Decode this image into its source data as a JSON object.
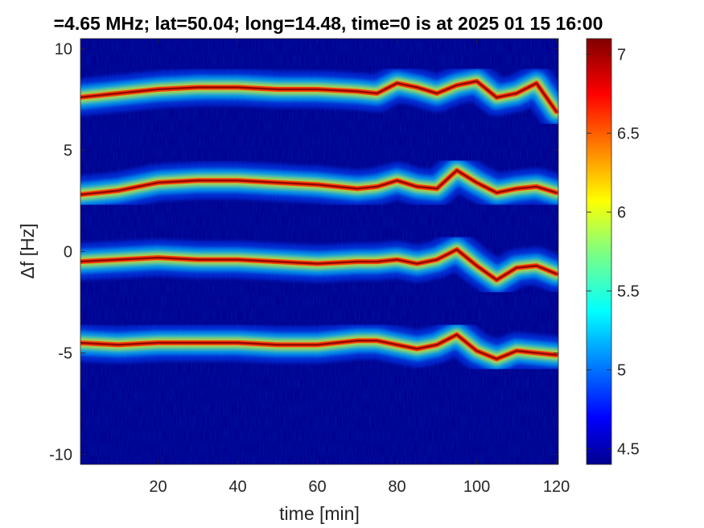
{
  "chart_data": {
    "type": "heatmap",
    "title": "=4.65 MHz;  lat=50.04; long=14.48, time=0 is at 2025 01 15 16:00",
    "xlabel": "time [min]",
    "ylabel": "Δf [Hz]",
    "xlim": [
      0.5,
      120.5
    ],
    "ylim": [
      -10.5,
      10.5
    ],
    "xticks": [
      "20",
      "40",
      "60",
      "80",
      "100",
      "120"
    ],
    "yticks": [
      "10",
      "5",
      "0",
      "-5",
      "-10"
    ],
    "colorbar": {
      "colormap": "jet",
      "range": [
        4.4,
        7.1
      ],
      "ticks": [
        "7",
        "6.5",
        "6",
        "5.5",
        "5",
        "4.5"
      ]
    },
    "series": [
      {
        "x": [
          0,
          10,
          20,
          30,
          40,
          50,
          60,
          70,
          75,
          80,
          85,
          90,
          95,
          100,
          105,
          110,
          115,
          120
        ],
        "y": [
          7.6,
          7.8,
          8.0,
          8.1,
          8.1,
          8.0,
          8.0,
          7.9,
          7.8,
          8.3,
          8.1,
          7.8,
          8.2,
          8.4,
          7.6,
          7.8,
          8.3,
          6.9
        ]
      },
      {
        "x": [
          0,
          10,
          20,
          30,
          40,
          50,
          60,
          70,
          75,
          80,
          85,
          90,
          95,
          100,
          105,
          110,
          115,
          120
        ],
        "y": [
          2.8,
          3.0,
          3.4,
          3.5,
          3.5,
          3.4,
          3.3,
          3.1,
          3.2,
          3.5,
          3.2,
          3.1,
          4.0,
          3.4,
          2.9,
          3.1,
          3.2,
          2.9
        ]
      },
      {
        "x": [
          0,
          10,
          20,
          30,
          40,
          50,
          60,
          70,
          75,
          80,
          85,
          90,
          95,
          100,
          105,
          110,
          115,
          120
        ],
        "y": [
          -0.5,
          -0.4,
          -0.3,
          -0.4,
          -0.4,
          -0.5,
          -0.6,
          -0.5,
          -0.5,
          -0.4,
          -0.6,
          -0.4,
          0.1,
          -0.7,
          -1.4,
          -0.8,
          -0.7,
          -1.1
        ]
      },
      {
        "x": [
          0,
          10,
          20,
          30,
          40,
          50,
          60,
          70,
          75,
          80,
          85,
          90,
          95,
          100,
          105,
          110,
          115,
          120
        ],
        "y": [
          -4.5,
          -4.6,
          -4.5,
          -4.5,
          -4.5,
          -4.6,
          -4.6,
          -4.4,
          -4.4,
          -4.6,
          -4.8,
          -4.6,
          -4.1,
          -4.9,
          -5.3,
          -4.9,
          -5.0,
          -5.1
        ]
      }
    ]
  }
}
